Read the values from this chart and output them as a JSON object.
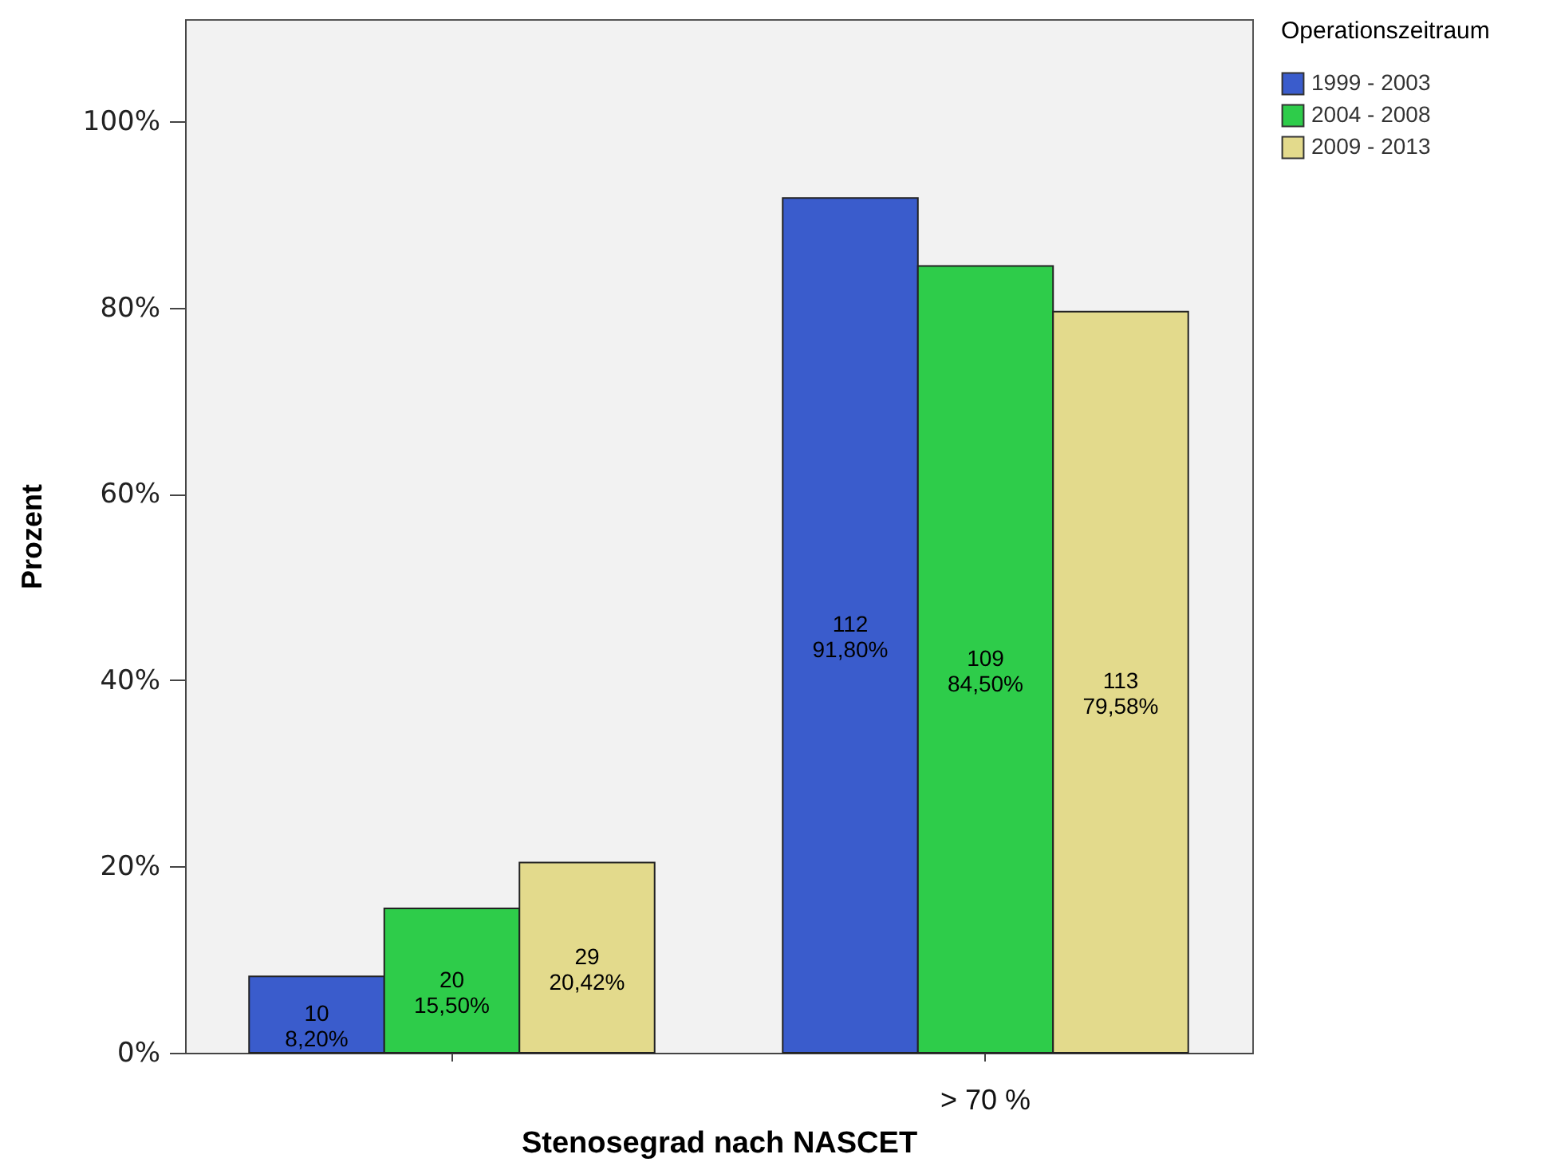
{
  "chart_data": {
    "type": "bar",
    "xlabel": "Stenosegrad nach NASCET",
    "ylabel": "Prozent",
    "legend_title": "Operationszeitraum",
    "categories": [
      null,
      "> 70 %"
    ],
    "series": [
      {
        "name": "1999 - 2003",
        "color": "#3a5ccc",
        "values": [
          8.2,
          91.8
        ],
        "value_labels": [
          "10\n8,20%",
          "112\n91,80%"
        ]
      },
      {
        "name": "2004 - 2008",
        "color": "#2ecc4a",
        "values": [
          15.5,
          84.5
        ],
        "value_labels": [
          "20\n15,50%",
          "109\n84,50%"
        ]
      },
      {
        "name": "2009 - 2013",
        "color": "#e3da8c",
        "values": [
          20.42,
          79.58
        ],
        "value_labels": [
          "29\n20,42%",
          "113\n79,58%"
        ]
      }
    ],
    "ylim": [
      0,
      111
    ],
    "yticks": [
      {
        "value": 0,
        "label": "0%"
      },
      {
        "value": 20,
        "label": "20%"
      },
      {
        "value": 40,
        "label": "40%"
      },
      {
        "value": 60,
        "label": "60%"
      },
      {
        "value": 80,
        "label": "80%"
      },
      {
        "value": 100,
        "label": "100%"
      }
    ],
    "grid": false,
    "legend": "top right"
  }
}
